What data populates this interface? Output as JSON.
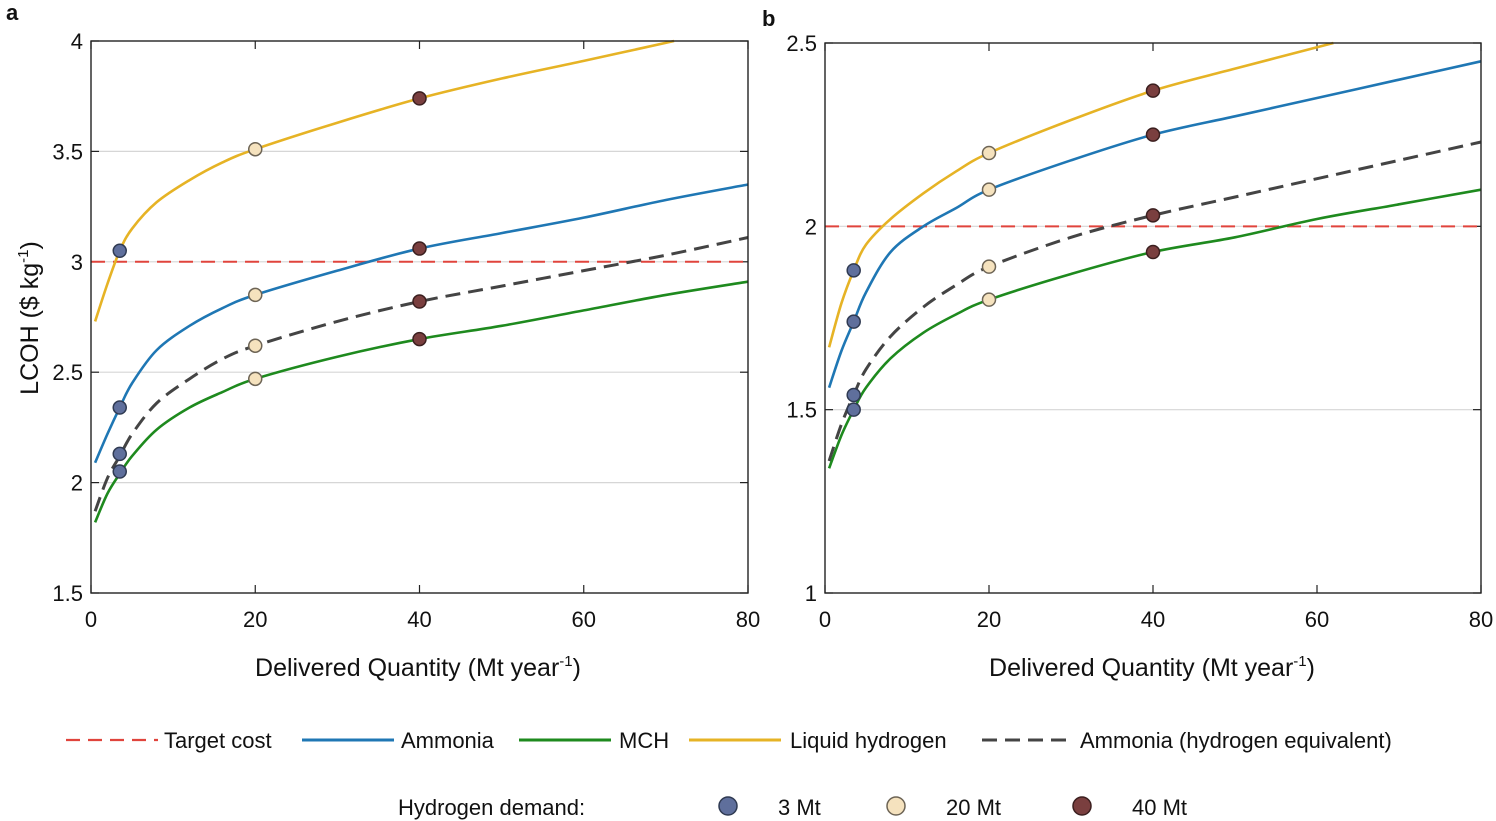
{
  "panel_labels": {
    "a": "a",
    "b": "b"
  },
  "ylabel_main": "LCOH ($ kg",
  "ylabel_sup": "-1",
  "ylabel_tail": ")",
  "xlabel_main": "Delivered Quantity (Mt year",
  "xlabel_sup": "-1",
  "xlabel_tail": ")",
  "colors": {
    "target": "#e0443c",
    "ammonia": "#1f77b4",
    "mch": "#1e8a1e",
    "lh2": "#e6b325",
    "ammonia_eq": "#444444",
    "d3": "#5f6f9c",
    "d20": "#f5e2be",
    "d40": "#7a3f3f"
  },
  "legend": {
    "target": "Target cost",
    "ammonia": "Ammonia",
    "mch": "MCH",
    "lh2": "Liquid hydrogen",
    "ammonia_eq": "Ammonia (hydrogen equivalent)",
    "demand_title": "Hydrogen demand:",
    "d3": "3 Mt",
    "d20": "20 Mt",
    "d40": "40 Mt"
  },
  "chart_data": [
    {
      "panel": "a",
      "type": "line",
      "xlabel": "Delivered Quantity (Mt year-1)",
      "ylabel": "LCOH ($ kg-1)",
      "xlim": [
        0,
        80
      ],
      "ylim": [
        1.5,
        4
      ],
      "xticks": [
        "0",
        "20",
        "40",
        "60",
        "80"
      ],
      "yticks": [
        "1.5",
        "2",
        "2.5",
        "3",
        "3.5",
        "4"
      ],
      "target_cost": 3.0,
      "series": [
        {
          "key": "lh2",
          "name": "Liquid hydrogen",
          "style": "solid",
          "x": [
            0.5,
            2,
            3.5,
            5,
            8,
            12,
            16,
            20,
            30,
            40,
            50,
            60,
            71
          ],
          "y": [
            2.73,
            2.9,
            3.05,
            3.15,
            3.27,
            3.37,
            3.45,
            3.51,
            3.63,
            3.74,
            3.83,
            3.91,
            4.0
          ]
        },
        {
          "key": "ammonia",
          "name": "Ammonia",
          "style": "solid",
          "x": [
            0.5,
            2,
            3.5,
            5,
            8,
            12,
            16,
            20,
            30,
            40,
            50,
            60,
            70,
            80
          ],
          "y": [
            2.09,
            2.22,
            2.34,
            2.45,
            2.6,
            2.71,
            2.79,
            2.85,
            2.96,
            3.06,
            3.13,
            3.2,
            3.28,
            3.35
          ]
        },
        {
          "key": "ammonia_eq",
          "name": "Ammonia (hydrogen equivalent)",
          "style": "dashed",
          "x": [
            0.5,
            2,
            3.5,
            5,
            8,
            12,
            16,
            20,
            30,
            40,
            50,
            60,
            70,
            80
          ],
          "y": [
            1.87,
            2.02,
            2.12,
            2.22,
            2.36,
            2.47,
            2.56,
            2.62,
            2.73,
            2.82,
            2.89,
            2.96,
            3.03,
            3.11
          ]
        },
        {
          "key": "mch",
          "name": "MCH",
          "style": "solid",
          "x": [
            0.5,
            2,
            3.5,
            5,
            8,
            12,
            16,
            20,
            30,
            40,
            50,
            60,
            70,
            80
          ],
          "y": [
            1.82,
            1.95,
            2.04,
            2.12,
            2.24,
            2.34,
            2.41,
            2.47,
            2.57,
            2.65,
            2.71,
            2.78,
            2.85,
            2.91
          ]
        }
      ],
      "markers": [
        {
          "x": 3.5,
          "y": 3.05,
          "demand": "d3"
        },
        {
          "x": 3.5,
          "y": 2.34,
          "demand": "d3"
        },
        {
          "x": 3.5,
          "y": 2.13,
          "demand": "d3"
        },
        {
          "x": 3.5,
          "y": 2.05,
          "demand": "d3"
        },
        {
          "x": 20,
          "y": 3.51,
          "demand": "d20"
        },
        {
          "x": 20,
          "y": 2.85,
          "demand": "d20"
        },
        {
          "x": 20,
          "y": 2.62,
          "demand": "d20"
        },
        {
          "x": 20,
          "y": 2.47,
          "demand": "d20"
        },
        {
          "x": 40,
          "y": 3.74,
          "demand": "d40"
        },
        {
          "x": 40,
          "y": 3.06,
          "demand": "d40"
        },
        {
          "x": 40,
          "y": 2.82,
          "demand": "d40"
        },
        {
          "x": 40,
          "y": 2.65,
          "demand": "d40"
        }
      ]
    },
    {
      "panel": "b",
      "type": "line",
      "xlabel": "Delivered Quantity (Mt year-1)",
      "ylabel": "",
      "xlim": [
        0,
        80
      ],
      "ylim": [
        1,
        2.5
      ],
      "xticks": [
        "0",
        "20",
        "40",
        "60",
        "80"
      ],
      "yticks": [
        "1",
        "1.5",
        "2",
        "2.5"
      ],
      "target_cost": 2.0,
      "series": [
        {
          "key": "lh2",
          "name": "Liquid hydrogen",
          "style": "solid",
          "x": [
            0.5,
            2,
            3.5,
            5,
            8,
            12,
            16,
            20,
            30,
            40,
            50,
            62
          ],
          "y": [
            1.67,
            1.79,
            1.88,
            1.95,
            2.02,
            2.09,
            2.15,
            2.2,
            2.29,
            2.37,
            2.43,
            2.5
          ]
        },
        {
          "key": "ammonia",
          "name": "Ammonia",
          "style": "solid",
          "x": [
            0.5,
            2,
            3.5,
            5,
            8,
            12,
            16,
            20,
            30,
            40,
            50,
            60,
            70,
            80
          ],
          "y": [
            1.56,
            1.66,
            1.74,
            1.82,
            1.93,
            2.0,
            2.05,
            2.1,
            2.18,
            2.25,
            2.3,
            2.35,
            2.4,
            2.45
          ]
        },
        {
          "key": "ammonia_eq",
          "name": "Ammonia (hydrogen equivalent)",
          "style": "dashed",
          "x": [
            0.5,
            2,
            3.5,
            5,
            8,
            12,
            16,
            20,
            30,
            40,
            50,
            60,
            70,
            80
          ],
          "y": [
            1.36,
            1.46,
            1.54,
            1.61,
            1.7,
            1.78,
            1.84,
            1.89,
            1.97,
            2.03,
            2.08,
            2.13,
            2.18,
            2.23
          ]
        },
        {
          "key": "mch",
          "name": "MCH",
          "style": "solid",
          "x": [
            0.5,
            2,
            3.5,
            5,
            8,
            12,
            16,
            20,
            30,
            40,
            50,
            60,
            70,
            80
          ],
          "y": [
            1.34,
            1.43,
            1.5,
            1.56,
            1.64,
            1.71,
            1.76,
            1.8,
            1.87,
            1.93,
            1.97,
            2.02,
            2.06,
            2.1
          ]
        }
      ],
      "markers": [
        {
          "x": 3.5,
          "y": 1.88,
          "demand": "d3"
        },
        {
          "x": 3.5,
          "y": 1.74,
          "demand": "d3"
        },
        {
          "x": 3.5,
          "y": 1.54,
          "demand": "d3"
        },
        {
          "x": 3.5,
          "y": 1.5,
          "demand": "d3"
        },
        {
          "x": 20,
          "y": 2.2,
          "demand": "d20"
        },
        {
          "x": 20,
          "y": 2.1,
          "demand": "d20"
        },
        {
          "x": 20,
          "y": 1.89,
          "demand": "d20"
        },
        {
          "x": 20,
          "y": 1.8,
          "demand": "d20"
        },
        {
          "x": 40,
          "y": 2.37,
          "demand": "d40"
        },
        {
          "x": 40,
          "y": 2.25,
          "demand": "d40"
        },
        {
          "x": 40,
          "y": 2.03,
          "demand": "d40"
        },
        {
          "x": 40,
          "y": 1.93,
          "demand": "d40"
        }
      ]
    }
  ]
}
